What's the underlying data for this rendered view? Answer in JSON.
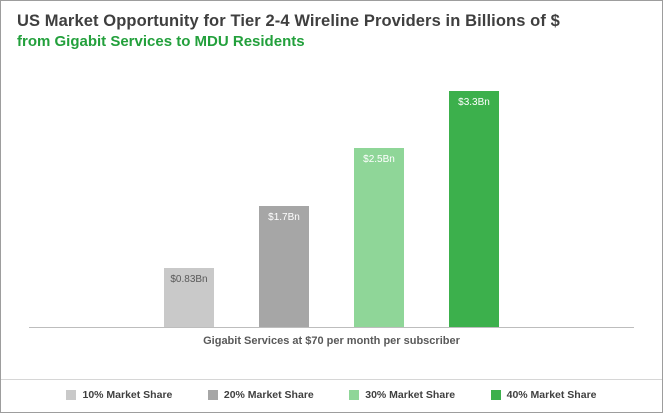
{
  "title": {
    "line1": "US Market Opportunity for Tier 2-4 Wireline Providers in Billions of $",
    "line2": "from Gigabit Services to MDU Residents"
  },
  "chart_data": {
    "type": "bar",
    "categories": [
      "10% Market Share",
      "20% Market Share",
      "30% Market Share",
      "40% Market Share"
    ],
    "values": [
      0.83,
      1.7,
      2.5,
      3.3
    ],
    "value_labels": [
      "$0.83Bn",
      "$1.7Bn",
      "$2.5Bn",
      "$3.3Bn"
    ],
    "bar_colors": [
      "#c9c9c9",
      "#a6a6a6",
      "#8fd698",
      "#3cb04c"
    ],
    "value_label_colors": [
      "#595959",
      "#ffffff",
      "#ffffff",
      "#ffffff"
    ],
    "xlabel": "Gigabit Services at $70 per month per subscriber",
    "ylim": [
      0,
      3.5
    ],
    "grid": false,
    "legend_position": "bottom"
  },
  "colors": {
    "title_primary": "#3f3f3f",
    "title_accent": "#23a03c",
    "axis_line": "#bdbdbd",
    "legend_text": "#404040",
    "border": "#9d9d9d"
  }
}
